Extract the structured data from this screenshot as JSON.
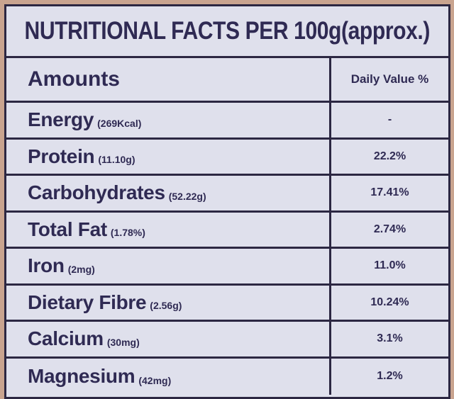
{
  "title": "NUTRITIONAL FACTS PER 100g(approx.)",
  "header": {
    "amounts_label": "Amounts",
    "daily_value_label": "Daily Value %"
  },
  "nutrients": [
    {
      "name": "Energy",
      "amount": "(269Kcal)",
      "daily_value": "-"
    },
    {
      "name": "Protein",
      "amount": "(11.10g)",
      "daily_value": "22.2%"
    },
    {
      "name": "Carbohydrates",
      "amount": "(52.22g)",
      "daily_value": "17.41%"
    },
    {
      "name": "Total Fat",
      "amount": "(1.78%)",
      "daily_value": "2.74%"
    },
    {
      "name": "Iron",
      "amount": "(2mg)",
      "daily_value": "11.0%"
    },
    {
      "name": "Dietary Fibre",
      "amount": "(2.56g)",
      "daily_value": "10.24%"
    },
    {
      "name": "Calcium",
      "amount": "(30mg)",
      "daily_value": "3.1%"
    },
    {
      "name": "Magnesium",
      "amount": "(42mg)",
      "daily_value": "1.2%"
    }
  ],
  "colors": {
    "background": "#c9a48f",
    "panel": "#dfe0ec",
    "ink": "#2f2a53",
    "border": "#2c2742"
  }
}
